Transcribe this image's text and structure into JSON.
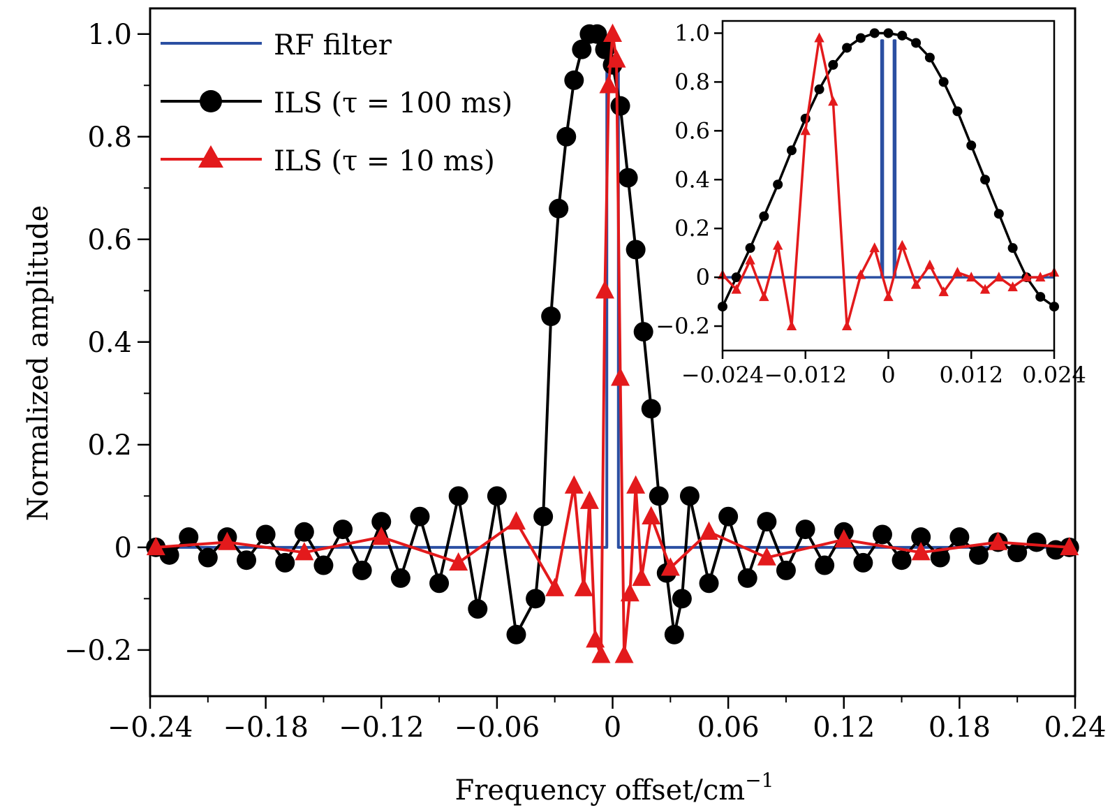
{
  "chart_data": [
    {
      "type": "line",
      "xlabel": "Frequency offset/cm",
      "xlabel_sup": "−1",
      "ylabel": "Normalized amplitude",
      "xlim": [
        -0.24,
        0.24
      ],
      "ylim": [
        -0.29,
        1.05
      ],
      "xticks": [
        -0.24,
        -0.18,
        -0.12,
        -0.06,
        0,
        0.06,
        0.12,
        0.18,
        0.24
      ],
      "xtick_labels": [
        "−0.24",
        "−0.18",
        "−0.12",
        "−0.06",
        "0",
        "0.06",
        "0.12",
        "0.18",
        "0.24"
      ],
      "yticks": [
        -0.2,
        0,
        0.2,
        0.4,
        0.6,
        0.8,
        1.0
      ],
      "ytick_labels": [
        "−0.2",
        "0",
        "0.2",
        "0.4",
        "0.6",
        "0.8",
        "1.0"
      ],
      "grid": false,
      "legend_position": "top-left",
      "legend": [
        {
          "label": "RF filter",
          "color": "#2b4fa2",
          "marker": "none"
        },
        {
          "label": "ILS (τ = 100 ms)",
          "color": "#000000",
          "marker": "circle"
        },
        {
          "label": "ILS (τ = 10 ms)",
          "color": "#e31a1c",
          "marker": "triangle"
        }
      ],
      "series": [
        {
          "name": "RF filter",
          "color": "#2b4fa2",
          "x": [
            -0.237,
            -0.003,
            -0.003,
            0.003,
            0.003,
            0.237
          ],
          "y": [
            0,
            0,
            0.95,
            0.95,
            0,
            0
          ]
        },
        {
          "name": "ILS (τ = 100 ms)",
          "color": "#000000",
          "x": [
            -0.237,
            -0.23,
            -0.22,
            -0.21,
            -0.2,
            -0.19,
            -0.18,
            -0.17,
            -0.16,
            -0.15,
            -0.14,
            -0.13,
            -0.12,
            -0.11,
            -0.1,
            -0.09,
            -0.08,
            -0.07,
            -0.06,
            -0.05,
            -0.04,
            -0.036,
            -0.032,
            -0.028,
            -0.024,
            -0.02,
            -0.016,
            -0.012,
            -0.008,
            -0.004,
            0,
            0.004,
            0.008,
            0.012,
            0.016,
            0.02,
            0.024,
            0.028,
            0.032,
            0.036,
            0.04,
            0.05,
            0.06,
            0.07,
            0.08,
            0.09,
            0.1,
            0.11,
            0.12,
            0.13,
            0.14,
            0.15,
            0.16,
            0.17,
            0.18,
            0.19,
            0.2,
            0.21,
            0.22,
            0.23,
            0.237
          ],
          "y": [
            0,
            -0.015,
            0.02,
            -0.02,
            0.02,
            -0.025,
            0.025,
            -0.03,
            0.03,
            -0.035,
            0.035,
            -0.045,
            0.05,
            -0.06,
            0.06,
            -0.07,
            0.1,
            -0.12,
            0.1,
            -0.17,
            -0.1,
            0.06,
            0.45,
            0.66,
            0.8,
            0.91,
            0.97,
            1.0,
            1.0,
            0.97,
            0.94,
            0.86,
            0.72,
            0.58,
            0.42,
            0.27,
            0.1,
            -0.05,
            -0.17,
            -0.1,
            0.1,
            -0.07,
            0.06,
            -0.06,
            0.05,
            -0.045,
            0.035,
            -0.035,
            0.03,
            -0.03,
            0.025,
            -0.025,
            0.02,
            -0.02,
            0.02,
            -0.015,
            0.01,
            -0.01,
            0.01,
            -0.005,
            0
          ]
        },
        {
          "name": "ILS (τ = 10 ms)",
          "color": "#e31a1c",
          "x": [
            -0.237,
            -0.2,
            -0.16,
            -0.12,
            -0.08,
            -0.05,
            -0.03,
            -0.02,
            -0.015,
            -0.012,
            -0.009,
            -0.006,
            -0.004,
            -0.002,
            0,
            0.002,
            0.004,
            0.006,
            0.009,
            0.012,
            0.015,
            0.02,
            0.03,
            0.05,
            0.08,
            0.12,
            0.16,
            0.2,
            0.237
          ],
          "y": [
            0,
            0.01,
            -0.01,
            0.02,
            -0.03,
            0.05,
            -0.08,
            0.12,
            -0.08,
            0.09,
            -0.18,
            -0.21,
            0.5,
            0.9,
            1.0,
            0.95,
            0.33,
            -0.21,
            -0.09,
            0.12,
            -0.06,
            0.06,
            -0.04,
            0.03,
            -0.02,
            0.015,
            -0.01,
            0.01,
            0
          ]
        }
      ]
    },
    {
      "type": "line",
      "role": "inset",
      "xlim": [
        -0.024,
        0.024
      ],
      "ylim": [
        -0.3,
        1.05
      ],
      "xticks": [
        -0.024,
        -0.012,
        0,
        0.012,
        0.024
      ],
      "xtick_labels": [
        "−0.024",
        "−0.012",
        "0",
        "0.012",
        "0.024"
      ],
      "yticks": [
        -0.2,
        0,
        0.2,
        0.4,
        0.6,
        0.8,
        1.0
      ],
      "ytick_labels": [
        "−0.2",
        "0",
        "0.2",
        "0.4",
        "0.6",
        "0.8",
        "1.0"
      ],
      "series": [
        {
          "name": "RF filter",
          "color": "#2b4fa2",
          "x": [
            -0.024,
            -0.001,
            -0.001,
            -0.0008,
            -0.0008,
            0.0008,
            0.0008,
            0.001,
            0.001,
            0.024
          ],
          "y": [
            0,
            0,
            0.97,
            0.97,
            0,
            0,
            0.97,
            0.97,
            0,
            0
          ]
        },
        {
          "name": "ILS (τ = 100 ms)",
          "color": "#000000",
          "x": [
            -0.024,
            -0.022,
            -0.02,
            -0.018,
            -0.016,
            -0.014,
            -0.012,
            -0.01,
            -0.008,
            -0.006,
            -0.004,
            -0.002,
            0,
            0.002,
            0.004,
            0.006,
            0.008,
            0.01,
            0.012,
            0.014,
            0.016,
            0.018,
            0.02,
            0.022,
            0.024
          ],
          "y": [
            -0.12,
            0.0,
            0.12,
            0.25,
            0.38,
            0.52,
            0.65,
            0.77,
            0.87,
            0.94,
            0.98,
            1.0,
            1.0,
            0.99,
            0.96,
            0.9,
            0.8,
            0.68,
            0.54,
            0.4,
            0.26,
            0.12,
            0.0,
            -0.08,
            -0.12
          ]
        },
        {
          "name": "ILS (τ = 10 ms)",
          "color": "#e31a1c",
          "x": [
            -0.024,
            -0.022,
            -0.02,
            -0.018,
            -0.016,
            -0.014,
            -0.012,
            -0.01,
            -0.008,
            -0.006,
            -0.004,
            -0.002,
            0,
            0.002,
            0.004,
            0.006,
            0.008,
            0.01,
            0.012,
            0.014,
            0.016,
            0.018,
            0.02,
            0.022,
            0.024
          ],
          "y": [
            0.01,
            -0.05,
            0.07,
            -0.08,
            0.13,
            -0.2,
            0.6,
            0.98,
            0.72,
            -0.2,
            0.01,
            0.12,
            -0.08,
            0.13,
            -0.03,
            0.05,
            -0.06,
            0.02,
            0.0,
            -0.05,
            0.0,
            -0.04,
            0.0,
            0.0,
            0.02
          ]
        }
      ]
    }
  ]
}
